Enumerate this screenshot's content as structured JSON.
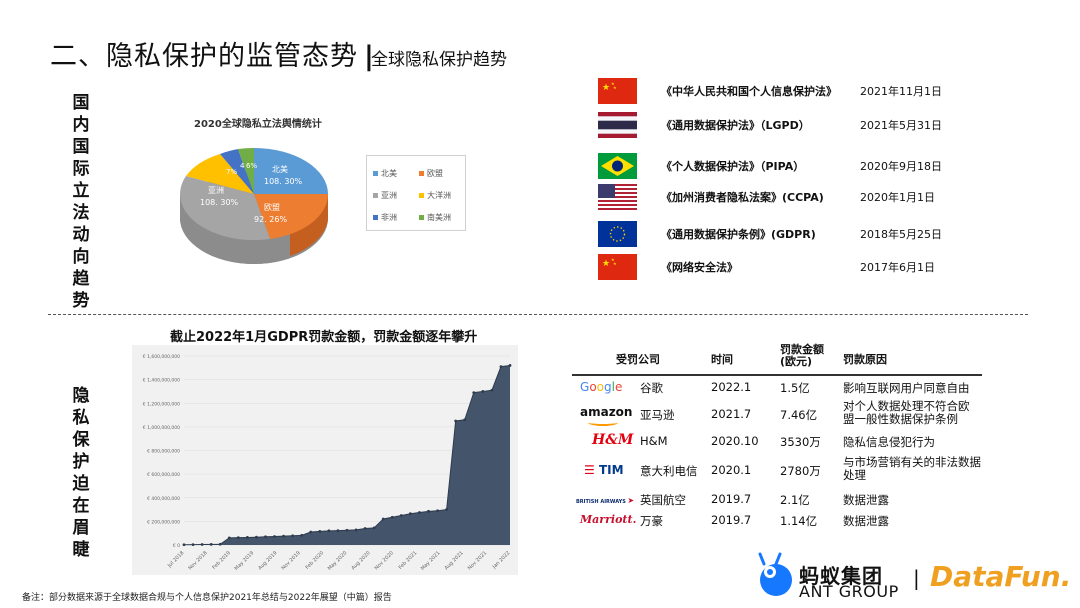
{
  "header": {
    "title": "二、隐私保护的监管态势",
    "separator": "|",
    "subtitle": "全球隐私保护趋势"
  },
  "section_top_label": "国内国际立法动向趋势",
  "section_bottom_label": "隐私保护迫在眉睫",
  "pie": {
    "title": "2020全球隐私立法舆情统计",
    "legend": [
      {
        "label": "北美",
        "color": "#5b9bd5"
      },
      {
        "label": "欧盟",
        "color": "#ed7d31"
      },
      {
        "label": "亚洲",
        "color": "#a5a5a5"
      },
      {
        "label": "大洋洲",
        "color": "#ffc000"
      },
      {
        "label": "非洲",
        "color": "#4472c4"
      },
      {
        "label": "南美洲",
        "color": "#70ad47"
      }
    ],
    "labels": {
      "na_name": "北美",
      "na_value": "108. 30%",
      "eu_name": "欧盟",
      "eu_value": "92. 26%",
      "asia_name": "亚洲",
      "asia_value": "108. 30%",
      "oce_value": "7%",
      "af_value": "4",
      "sa_value": "6%"
    }
  },
  "laws": [
    {
      "flag": "china",
      "name": "《中华人民共和国个人信息保护法》",
      "date": "2021年11月1日"
    },
    {
      "flag": "thailand",
      "name": "《通用数据保护法》（LGPD）",
      "date": "2021年5月31日"
    },
    {
      "flag": "brazil",
      "name": "《个人数据保护法》（PIPA）",
      "date": "2020年9月18日"
    },
    {
      "flag": "usa",
      "name": "《加州消费者隐私法案》(CCPA)",
      "date": "2020年1月1日"
    },
    {
      "flag": "eu",
      "name": "《通用数据保护条例》(GDPR)",
      "date": "2018年5月25日"
    },
    {
      "flag": "china",
      "name": "《网络安全法》",
      "date": "2017年6月1日"
    }
  ],
  "gdpr_chart_title": "截止2022年1月GDPR罚款金额，罚款金额逐年攀升",
  "chart_data": {
    "type": "area",
    "title": "截止2022年1月GDPR罚款金额，罚款金额逐年攀升",
    "xlabel": "",
    "ylabel": "",
    "ylim": [
      0,
      1600000000
    ],
    "y_ticks": [
      "€ 0",
      "€ 200,000,000",
      "€ 400,000,000",
      "€ 600,000,000",
      "€ 800,000,000",
      "€ 1,000,000,000",
      "€ 1,200,000,000",
      "€ 1,400,000,000",
      "€ 1,600,000,000"
    ],
    "x_ticks": [
      "Jul 2018",
      "Nov 2018",
      "Feb 2019",
      "May 2019",
      "Aug 2019",
      "Nov 2019",
      "Feb 2020",
      "May 2020",
      "Aug 2020",
      "Nov 2020",
      "Feb 2021",
      "May 2021",
      "Aug 2021",
      "Nov 2021",
      "Jan 2022"
    ],
    "values": [
      2000000,
      3000000,
      4000000,
      5000000,
      6000000,
      60000000,
      62000000,
      64000000,
      66000000,
      70000000,
      72000000,
      75000000,
      78000000,
      82000000,
      110000000,
      115000000,
      120000000,
      122000000,
      125000000,
      128000000,
      140000000,
      145000000,
      220000000,
      235000000,
      250000000,
      265000000,
      275000000,
      285000000,
      290000000,
      300000000,
      1050000000,
      1060000000,
      1290000000,
      1300000000,
      1310000000,
      1510000000,
      1520000000
    ]
  },
  "fines_table": {
    "headers": {
      "company": "受罚公司",
      "time": "时间",
      "amount": "罚款金额\n(欧元)",
      "reason": "罚款原因"
    },
    "rows": [
      {
        "logo": "Google",
        "company": "谷歌",
        "time": "2022.1",
        "amount": "1.5亿",
        "reason": "影响互联网用户同意自由"
      },
      {
        "logo": "amazon",
        "company": "亚马逊",
        "time": "2021.7",
        "amount": "7.46亿",
        "reason": "对个人数据处理不符合欧盟一般性数据保护条例"
      },
      {
        "logo": "H&M",
        "company": "H&M",
        "time": "2020.10",
        "amount": "3530万",
        "reason": "隐私信息侵犯行为"
      },
      {
        "logo": "TIM",
        "company": "意大利电信",
        "time": "2020.1",
        "amount": "2780万",
        "reason": "与市场营销有关的非法数据处理"
      },
      {
        "logo": "BRITISH AIRWAYS",
        "company": "英国航空",
        "time": "2019.7",
        "amount": "2.1亿",
        "reason": "数据泄露"
      },
      {
        "logo": "Marriott",
        "company": "万豪",
        "time": "2019.7",
        "amount": "1.14亿",
        "reason": "数据泄露"
      }
    ]
  },
  "footnote": "备注：部分数据来源于全球数据合规与个人信息保护2021年总结与2022年展望（中篇）报告",
  "branding": {
    "ant_cn": "蚂蚁集团",
    "ant_en": "ANT GROUP",
    "divider": "|",
    "datafun": "DataFun."
  }
}
